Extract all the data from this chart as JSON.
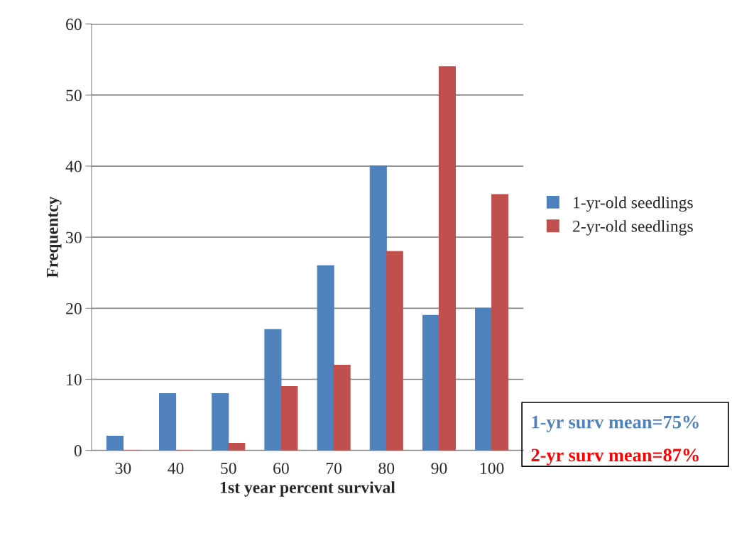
{
  "chart_data": {
    "type": "bar",
    "categories": [
      "30",
      "40",
      "50",
      "60",
      "70",
      "80",
      "90",
      "100"
    ],
    "series": [
      {
        "name": "1-yr-old seedlings",
        "color": "#4f81bd",
        "values": [
          2,
          8,
          8,
          17,
          26,
          40,
          19,
          20
        ]
      },
      {
        "name": "2-yr-old seedlings",
        "color": "#c0504d",
        "values": [
          0,
          0,
          1,
          9,
          12,
          28,
          54,
          36
        ]
      }
    ],
    "xlabel": "1st year percent survival",
    "ylabel": "Frequentcy",
    "ylim": [
      0,
      60
    ],
    "yticks": [
      0,
      10,
      20,
      30,
      40,
      50,
      60
    ],
    "grid": "y",
    "legend": "right",
    "annotations": [
      "1-yr surv mean=75%",
      "2-yr surv mean=87%"
    ]
  }
}
